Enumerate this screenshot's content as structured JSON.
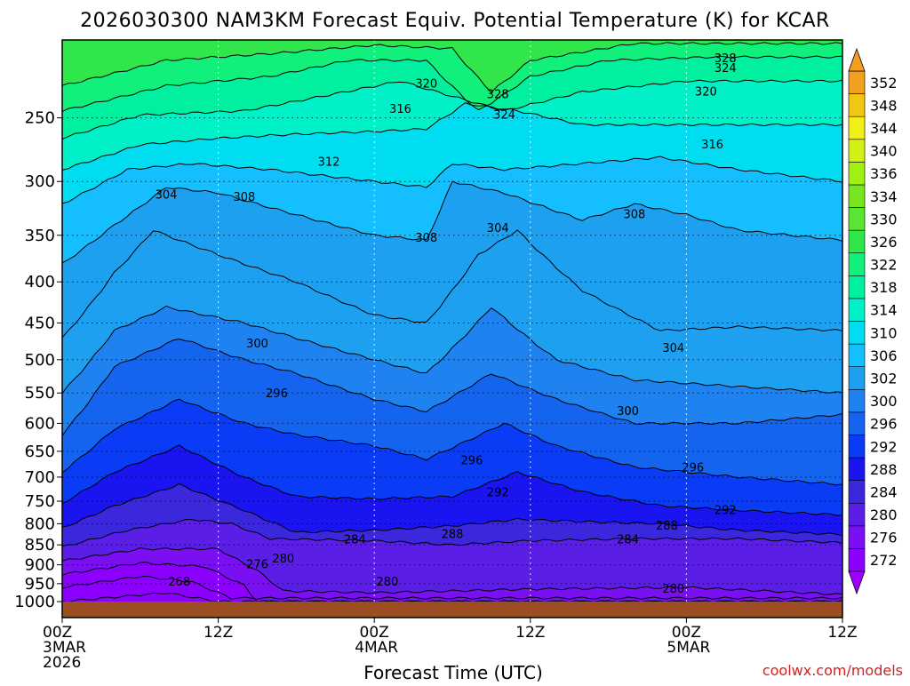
{
  "title": "2026030300 NAM3KM Forecast Equiv. Potential Temperature (K) for KCAR",
  "credit": "coolwx.com/models",
  "chart_data": {
    "type": "heatmap",
    "title": "2026030300 NAM3KM Forecast Equiv. Potential Temperature (K) for KCAR",
    "xlabel": "Forecast Time (UTC)",
    "ylabel": "",
    "y_scale": "log-pressure",
    "y_ticks": [
      250,
      300,
      350,
      400,
      450,
      500,
      550,
      600,
      650,
      700,
      750,
      800,
      850,
      900,
      950,
      1000
    ],
    "y_range": [
      1000,
      200
    ],
    "x_range_hours": [
      0,
      60
    ],
    "x_ticks": [
      {
        "hour": 0,
        "lines": [
          "00Z",
          "3MAR",
          "2026"
        ]
      },
      {
        "hour": 12,
        "lines": [
          "12Z"
        ]
      },
      {
        "hour": 24,
        "lines": [
          "00Z",
          "4MAR"
        ]
      },
      {
        "hour": 36,
        "lines": [
          "12Z"
        ]
      },
      {
        "hour": 48,
        "lines": [
          "00Z",
          "5MAR"
        ]
      },
      {
        "hour": 60,
        "lines": [
          "12Z"
        ]
      }
    ],
    "grid": true,
    "colorbar": {
      "units": "K",
      "levels": [
        272,
        276,
        280,
        284,
        288,
        292,
        296,
        300,
        302,
        306,
        310,
        314,
        318,
        322,
        326,
        330,
        334,
        336,
        340,
        344,
        348,
        352
      ],
      "colors": [
        "#8c00ff",
        "#7a10f2",
        "#5a1ee6",
        "#3c28dc",
        "#1a14f0",
        "#0a3cf5",
        "#1464f0",
        "#1e82f0",
        "#1ea0f0",
        "#14beff",
        "#00dcf0",
        "#00f0c8",
        "#00f0a0",
        "#10f07a",
        "#30e64a",
        "#5ae632",
        "#78e61e",
        "#a0f014",
        "#d2f014",
        "#f0f014",
        "#f0c814",
        "#f0a01e"
      ]
    },
    "contour_levels": [
      268,
      276,
      280,
      284,
      288,
      292,
      296,
      300,
      304,
      308,
      312,
      316,
      320,
      324,
      328
    ],
    "isotherms": [
      {
        "k": 268,
        "series": [
          [
            0,
            1000
          ],
          [
            8,
            975
          ],
          [
            12,
            1000
          ]
        ]
      },
      {
        "k": 272,
        "series": [
          [
            0,
            960
          ],
          [
            6,
            930
          ],
          [
            10,
            945
          ],
          [
            13,
            990
          ]
        ]
      },
      {
        "k": 276,
        "series": [
          [
            0,
            925
          ],
          [
            6,
            895
          ],
          [
            11,
            905
          ],
          [
            14,
            955
          ],
          [
            15,
            1000
          ]
        ]
      },
      {
        "k": 280,
        "series": [
          [
            0,
            890
          ],
          [
            6,
            860
          ],
          [
            12,
            860
          ],
          [
            15,
            915
          ],
          [
            17,
            970
          ],
          [
            24,
            975
          ],
          [
            36,
            965
          ],
          [
            48,
            960
          ],
          [
            54,
            970
          ],
          [
            60,
            980
          ]
        ]
      },
      {
        "k": 284,
        "series": [
          [
            0,
            855
          ],
          [
            5,
            815
          ],
          [
            10,
            790
          ],
          [
            13,
            800
          ],
          [
            16,
            835
          ],
          [
            24,
            840
          ],
          [
            30,
            850
          ],
          [
            36,
            840
          ],
          [
            44,
            835
          ],
          [
            52,
            835
          ],
          [
            60,
            845
          ]
        ]
      },
      {
        "k": 288,
        "series": [
          [
            0,
            810
          ],
          [
            4,
            760
          ],
          [
            9,
            715
          ],
          [
            14,
            770
          ],
          [
            18,
            820
          ],
          [
            24,
            815
          ],
          [
            30,
            805
          ],
          [
            35,
            790
          ],
          [
            40,
            795
          ],
          [
            46,
            800
          ],
          [
            52,
            815
          ],
          [
            60,
            825
          ]
        ]
      },
      {
        "k": 292,
        "series": [
          [
            0,
            755
          ],
          [
            4,
            690
          ],
          [
            9,
            640
          ],
          [
            14,
            700
          ],
          [
            18,
            740
          ],
          [
            24,
            745
          ],
          [
            30,
            740
          ],
          [
            35,
            690
          ],
          [
            40,
            730
          ],
          [
            46,
            760
          ],
          [
            52,
            770
          ],
          [
            60,
            780
          ]
        ]
      },
      {
        "k": 296,
        "series": [
          [
            0,
            690
          ],
          [
            4,
            610
          ],
          [
            9,
            560
          ],
          [
            14,
            600
          ],
          [
            18,
            620
          ],
          [
            24,
            640
          ],
          [
            28,
            665
          ],
          [
            34,
            600
          ],
          [
            38,
            640
          ],
          [
            44,
            680
          ],
          [
            52,
            700
          ],
          [
            60,
            715
          ]
        ]
      },
      {
        "k": 300,
        "series": [
          [
            0,
            620
          ],
          [
            4,
            510
          ],
          [
            9,
            470
          ],
          [
            14,
            500
          ],
          [
            18,
            520
          ],
          [
            24,
            560
          ],
          [
            28,
            580
          ],
          [
            33,
            520
          ],
          [
            38,
            560
          ],
          [
            44,
            600
          ],
          [
            52,
            600
          ],
          [
            60,
            585
          ]
        ]
      },
      {
        "k": 302,
        "series": [
          [
            0,
            550
          ],
          [
            4,
            460
          ],
          [
            8,
            430
          ],
          [
            14,
            450
          ],
          [
            18,
            470
          ],
          [
            24,
            500
          ],
          [
            28,
            520
          ],
          [
            33,
            430
          ],
          [
            38,
            500
          ],
          [
            44,
            530
          ],
          [
            52,
            540
          ],
          [
            60,
            550
          ]
        ]
      },
      {
        "k": 304,
        "series": [
          [
            0,
            470
          ],
          [
            4,
            390
          ],
          [
            7,
            345
          ],
          [
            12,
            370
          ],
          [
            18,
            400
          ],
          [
            24,
            440
          ],
          [
            28,
            450
          ],
          [
            32,
            370
          ],
          [
            35,
            345
          ],
          [
            40,
            410
          ],
          [
            46,
            460
          ],
          [
            52,
            455
          ],
          [
            60,
            460
          ]
        ]
      },
      {
        "k": 308,
        "series": [
          [
            0,
            380
          ],
          [
            4,
            340
          ],
          [
            8,
            305
          ],
          [
            12,
            310
          ],
          [
            18,
            330
          ],
          [
            24,
            350
          ],
          [
            28,
            355
          ],
          [
            30,
            300
          ],
          [
            34,
            310
          ],
          [
            40,
            335
          ],
          [
            44,
            320
          ],
          [
            48,
            330
          ],
          [
            52,
            345
          ],
          [
            60,
            355
          ]
        ]
      },
      {
        "k": 312,
        "series": [
          [
            0,
            320
          ],
          [
            5,
            290
          ],
          [
            10,
            285
          ],
          [
            16,
            290
          ],
          [
            24,
            300
          ],
          [
            28,
            305
          ],
          [
            30,
            285
          ],
          [
            34,
            290
          ],
          [
            40,
            285
          ],
          [
            46,
            280
          ],
          [
            52,
            290
          ],
          [
            60,
            300
          ]
        ]
      },
      {
        "k": 316,
        "series": [
          [
            0,
            290
          ],
          [
            6,
            270
          ],
          [
            12,
            265
          ],
          [
            18,
            262
          ],
          [
            24,
            260
          ],
          [
            28,
            258
          ],
          [
            31,
            240
          ],
          [
            35,
            245
          ],
          [
            40,
            255
          ],
          [
            46,
            255
          ],
          [
            52,
            255
          ],
          [
            60,
            255
          ]
        ]
      },
      {
        "k": 320,
        "series": [
          [
            0,
            265
          ],
          [
            6,
            248
          ],
          [
            14,
            245
          ],
          [
            20,
            235
          ],
          [
            26,
            225
          ],
          [
            30,
            235
          ],
          [
            34,
            245
          ],
          [
            40,
            232
          ],
          [
            48,
            225
          ],
          [
            60,
            225
          ]
        ]
      },
      {
        "k": 324,
        "series": [
          [
            0,
            245
          ],
          [
            8,
            228
          ],
          [
            16,
            222
          ],
          [
            22,
            212
          ],
          [
            28,
            212
          ],
          [
            32,
            245
          ],
          [
            36,
            222
          ],
          [
            42,
            212
          ],
          [
            50,
            210
          ],
          [
            60,
            210
          ]
        ]
      },
      {
        "k": 328,
        "series": [
          [
            0,
            228
          ],
          [
            8,
            212
          ],
          [
            16,
            208
          ],
          [
            24,
            203
          ],
          [
            30,
            205
          ],
          [
            33,
            232
          ],
          [
            36,
            212
          ],
          [
            44,
            202
          ],
          [
            60,
            202
          ]
        ]
      }
    ],
    "contour_labels": [
      {
        "text": "268",
        "hour": 9,
        "p": 945
      },
      {
        "text": "276",
        "hour": 15,
        "p": 900
      },
      {
        "text": "280",
        "hour": 17,
        "p": 885
      },
      {
        "text": "280",
        "hour": 25,
        "p": 945
      },
      {
        "text": "280",
        "hour": 47,
        "p": 965
      },
      {
        "text": "284",
        "hour": 22.5,
        "p": 838
      },
      {
        "text": "284",
        "hour": 43.5,
        "p": 838
      },
      {
        "text": "288",
        "hour": 30,
        "p": 825
      },
      {
        "text": "288",
        "hour": 46.5,
        "p": 805
      },
      {
        "text": "292",
        "hour": 33.5,
        "p": 732
      },
      {
        "text": "292",
        "hour": 51,
        "p": 770
      },
      {
        "text": "296",
        "hour": 16.5,
        "p": 551
      },
      {
        "text": "296",
        "hour": 31.5,
        "p": 668
      },
      {
        "text": "296",
        "hour": 48.5,
        "p": 682
      },
      {
        "text": "300",
        "hour": 15,
        "p": 478
      },
      {
        "text": "300",
        "hour": 43.5,
        "p": 580
      },
      {
        "text": "304",
        "hour": 8,
        "p": 312
      },
      {
        "text": "304",
        "hour": 33.5,
        "p": 343
      },
      {
        "text": "304",
        "hour": 47,
        "p": 484
      },
      {
        "text": "308",
        "hour": 14,
        "p": 314
      },
      {
        "text": "308",
        "hour": 28,
        "p": 353
      },
      {
        "text": "308",
        "hour": 44,
        "p": 330
      },
      {
        "text": "312",
        "hour": 20.5,
        "p": 284
      },
      {
        "text": "316",
        "hour": 26,
        "p": 244
      },
      {
        "text": "316",
        "hour": 50,
        "p": 270
      },
      {
        "text": "320",
        "hour": 28,
        "p": 227
      },
      {
        "text": "320",
        "hour": 49.5,
        "p": 232
      },
      {
        "text": "324",
        "hour": 34,
        "p": 248
      },
      {
        "text": "324",
        "hour": 51,
        "p": 217
      },
      {
        "text": "328",
        "hour": 33.5,
        "p": 234
      },
      {
        "text": "328",
        "hour": 51,
        "p": 211
      }
    ]
  }
}
